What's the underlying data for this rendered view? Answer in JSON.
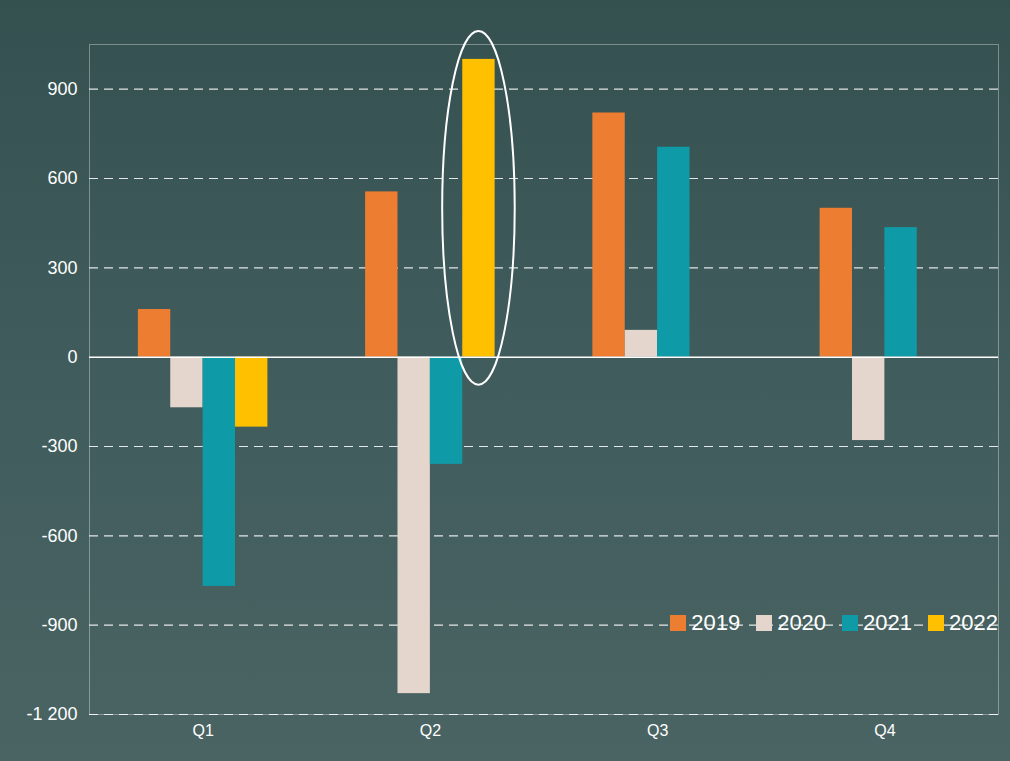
{
  "chart_data": {
    "type": "bar",
    "categories": [
      "Q1",
      "Q2",
      "Q3",
      "Q4"
    ],
    "series": [
      {
        "name": "2019",
        "color": "#ed7d31",
        "values": [
          160,
          555,
          820,
          500
        ]
      },
      {
        "name": "2020",
        "color": "#e4d6cc",
        "values": [
          -170,
          -1130,
          90,
          -280
        ]
      },
      {
        "name": "2021",
        "color": "#0f9aa8",
        "values": [
          -770,
          -360,
          705,
          435
        ]
      },
      {
        "name": "2022",
        "color": "#ffc000",
        "values": [
          -235,
          1000,
          null,
          null
        ]
      }
    ],
    "ylim": [
      -1200,
      1050
    ],
    "yticks": [
      {
        "value": -1200,
        "label": "-1 200"
      },
      -900,
      -600,
      -300,
      0,
      300,
      600,
      900
    ],
    "grid": true,
    "legend": "lower right"
  }
}
